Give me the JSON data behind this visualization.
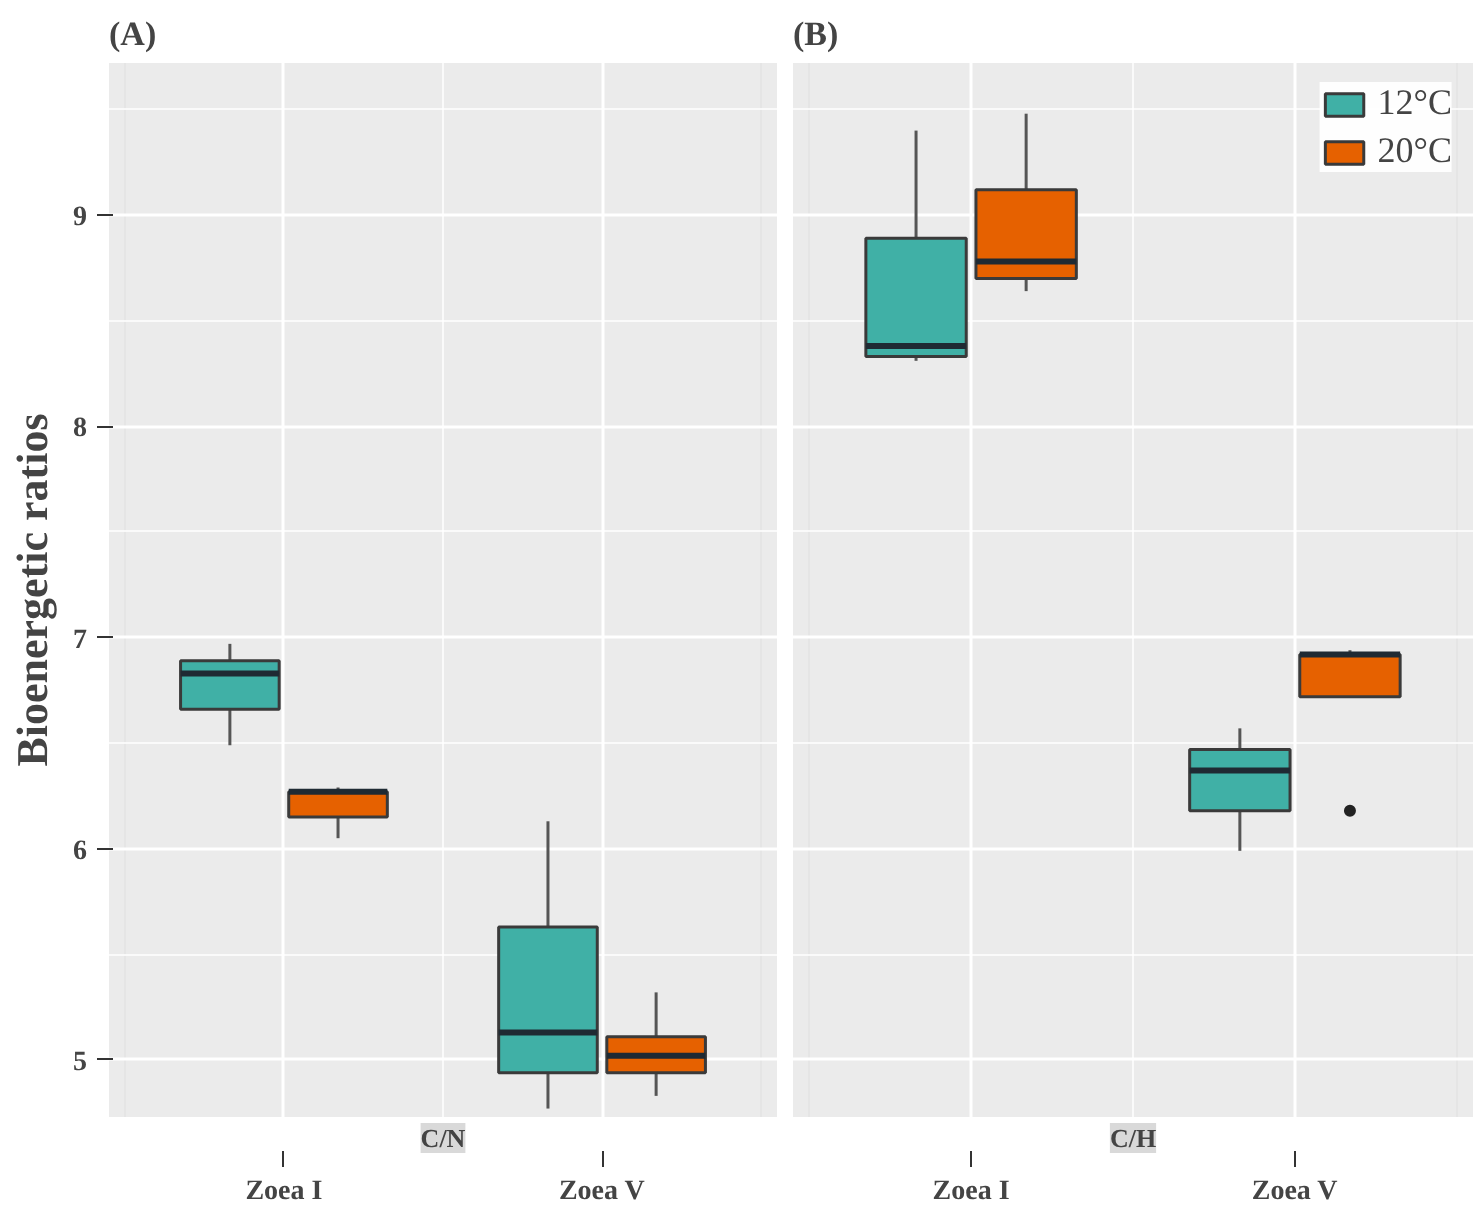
{
  "chart_data": [
    {
      "type": "box",
      "title": "(A)",
      "xlabel": "C/N",
      "ylabel": "Bioenergetic ratios",
      "categories": [
        "Zoea I",
        "Zoea V"
      ],
      "ylim": [
        4.73,
        9.72
      ],
      "yticks": [
        5,
        6,
        7,
        8,
        9
      ],
      "grid": true,
      "series": [
        {
          "color": "#40b0a6",
          "boxes": [
            {
              "low": 6.49,
              "q1": 6.66,
              "median": 6.83,
              "q3": 6.89,
              "high": 6.97
            },
            {
              "low": 4.77,
              "q1": 4.94,
              "median": 5.13,
              "q3": 5.63,
              "high": 6.13
            }
          ]
        },
        {
          "color": "#e66100",
          "boxes": [
            {
              "low": 6.05,
              "q1": 6.15,
              "median": 6.27,
              "q3": 6.27,
              "high": 6.29
            },
            {
              "low": 4.83,
              "q1": 4.94,
              "median": 5.02,
              "q3": 5.11,
              "high": 5.32
            }
          ]
        }
      ]
    },
    {
      "type": "box",
      "title": "(B)",
      "xlabel": "C/H",
      "categories": [
        "Zoea I",
        "Zoea V"
      ],
      "ylim": [
        4.73,
        9.72
      ],
      "yticks": [
        5,
        6,
        7,
        8,
        9
      ],
      "grid": true,
      "legend": "top right",
      "tick_labels": "x",
      "series": [
        {
          "name": "12°C",
          "color": "#40b0a6",
          "boxes": [
            {
              "low": 8.31,
              "q1": 8.33,
              "median": 8.38,
              "q3": 8.89,
              "high": 9.4
            },
            {
              "low": 5.99,
              "q1": 6.18,
              "median": 6.37,
              "q3": 6.47,
              "high": 6.57
            }
          ]
        },
        {
          "name": "20°C",
          "color": "#e66100",
          "boxes": [
            {
              "low": 8.64,
              "q1": 8.7,
              "median": 8.78,
              "q3": 9.12,
              "high": 9.48
            },
            {
              "low": 6.72,
              "q1": 6.72,
              "median": 6.92,
              "q3": 6.92,
              "high": 6.94,
              "outliers": [
                6.18
              ]
            }
          ]
        }
      ]
    }
  ]
}
